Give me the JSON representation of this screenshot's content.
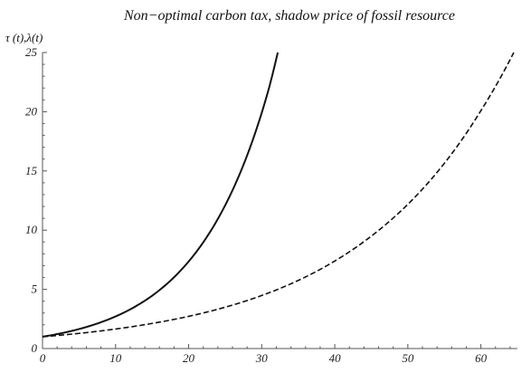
{
  "chart_data": {
    "type": "line",
    "title": "Non−optimal carbon tax, shadow price of  fossil resource",
    "ylabel": "τ (t),λ(t)",
    "xlabel": "",
    "xlim": [
      0,
      65
    ],
    "ylim": [
      0,
      25
    ],
    "xticks": [
      0,
      10,
      20,
      30,
      40,
      50,
      60
    ],
    "yticks": [
      0,
      5,
      10,
      15,
      20,
      25
    ],
    "grid": false,
    "series": [
      {
        "style": "solid",
        "x": [
          0,
          2,
          4,
          6,
          8,
          10,
          12,
          14,
          16,
          18,
          20,
          22,
          24,
          26,
          28,
          30,
          31,
          32.2
        ],
        "y": [
          1.0,
          1.22,
          1.49,
          1.82,
          2.22,
          2.71,
          3.31,
          4.04,
          4.93,
          6.02,
          7.35,
          8.97,
          10.95,
          13.36,
          16.3,
          19.9,
          22.0,
          25.0
        ]
      },
      {
        "style": "dashed",
        "x": [
          0,
          5,
          10,
          15,
          20,
          25,
          30,
          35,
          40,
          45,
          50,
          55,
          60,
          64.5
        ],
        "y": [
          1.0,
          1.28,
          1.65,
          2.12,
          2.72,
          3.49,
          4.48,
          5.75,
          7.39,
          9.49,
          12.18,
          15.64,
          20.09,
          25.0
        ]
      }
    ]
  }
}
